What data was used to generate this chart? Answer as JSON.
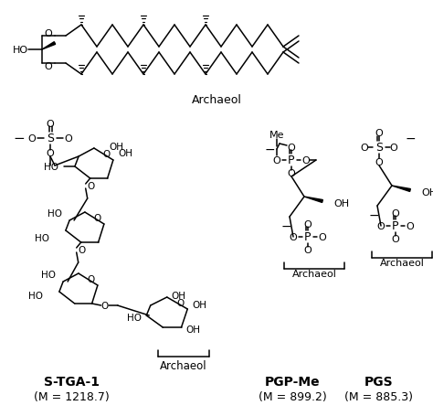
{
  "background_color": "#ffffff",
  "fig_width": 4.74,
  "fig_height": 4.56,
  "dpi": 100,
  "labels": {
    "archaeol_top": "Archaeol",
    "stga1_name": "S-TGA-1",
    "stga1_mass": "(M = 1218.7)",
    "pgpme_name": "PGP-Me",
    "pgpme_mass": "(M = 899.2)",
    "pgs_name": "PGS",
    "pgs_mass": "(M = 885.3)"
  }
}
